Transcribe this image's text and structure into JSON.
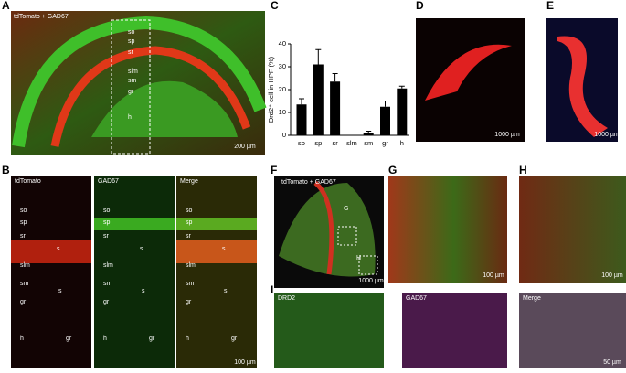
{
  "panels": {
    "A": {
      "letter": "A",
      "label": "tdTomato + GAD67",
      "layers": [
        "so",
        "sp",
        "sr",
        "slm",
        "sm",
        "gr",
        "h"
      ],
      "scale": "200 µm"
    },
    "B": {
      "letter": "B",
      "titles": [
        "tdTomato",
        "GAD67",
        "Merge"
      ],
      "layers": [
        "so",
        "sp",
        "sr",
        "s",
        "slm",
        "sm",
        "s",
        "gr",
        "h",
        "gr"
      ],
      "scale": "100 µm"
    },
    "C": {
      "letter": "C"
    },
    "D": {
      "letter": "D",
      "scale": "1000 µm"
    },
    "E": {
      "letter": "E",
      "scale": "1000 µm"
    },
    "F": {
      "letter": "F",
      "label": "tdTomato + GAD67",
      "boxes": [
        "G",
        "H"
      ],
      "scale": "1000 µm"
    },
    "G": {
      "letter": "G",
      "scale": "100 µm"
    },
    "H": {
      "letter": "H",
      "scale": "100 µm"
    },
    "I": {
      "letter": "I",
      "titles": [
        "DRD2",
        "GAD67",
        "Merge"
      ],
      "scale": "50 µm"
    }
  },
  "chart_data": {
    "type": "bar",
    "y_label": "Drd2⁺ cell in HPF (%)",
    "categories": [
      "so",
      "sp",
      "sr",
      "slm",
      "sm",
      "gr",
      "h"
    ],
    "values": [
      13.5,
      31,
      23.5,
      0,
      1,
      12.5,
      20.5
    ],
    "errors": [
      2.5,
      6.5,
      3.5,
      0,
      0.8,
      2.5,
      1
    ],
    "color": "#000000",
    "ylim": [
      0,
      40
    ],
    "yticks": [
      0,
      10,
      20,
      30,
      40
    ]
  }
}
